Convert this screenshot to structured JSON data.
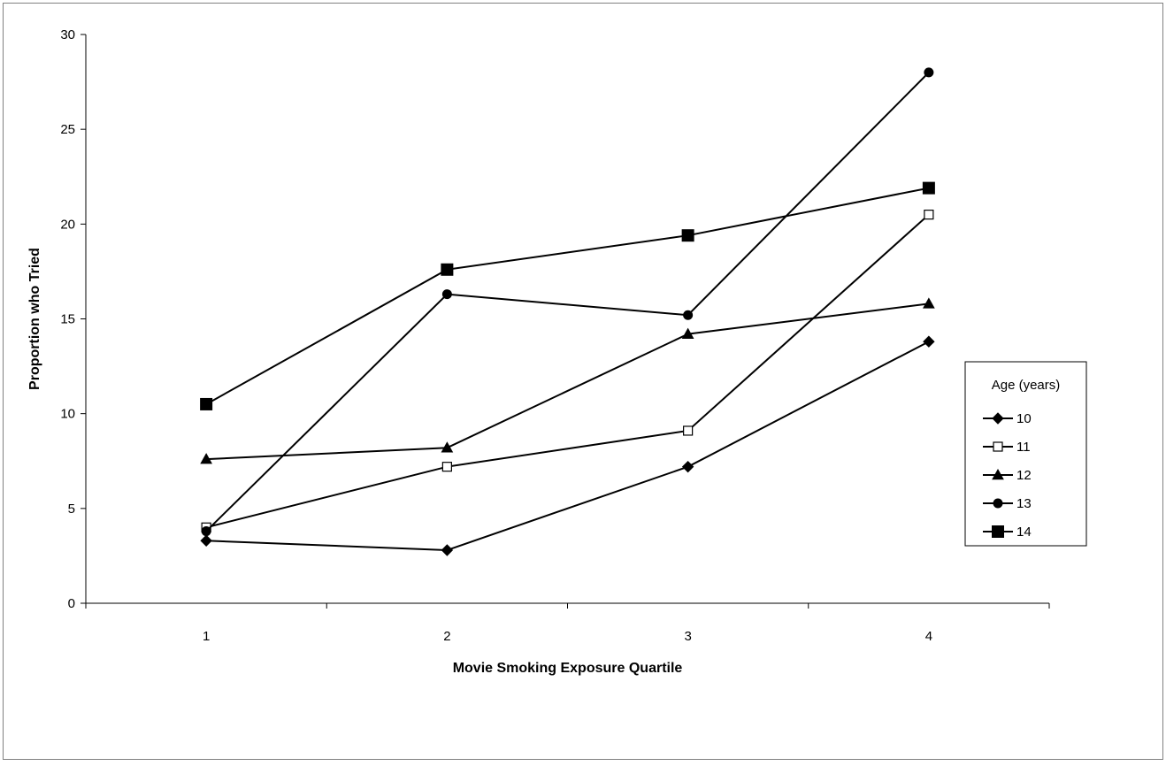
{
  "chart_data": {
    "type": "line",
    "title": "",
    "xlabel": "Movie Smoking Exposure Quartile",
    "ylabel": "Proportion who Tried",
    "categories": [
      "1",
      "2",
      "3",
      "4"
    ],
    "ylim": [
      0,
      30
    ],
    "yticks": [
      0,
      5,
      10,
      15,
      20,
      25,
      30
    ],
    "grid": false,
    "legend": {
      "title": "Age (years)",
      "position": "right"
    },
    "series": [
      {
        "name": "10",
        "marker": "diamond",
        "values": [
          3.3,
          2.8,
          7.2,
          13.8
        ]
      },
      {
        "name": "11",
        "marker": "open-square",
        "values": [
          4.0,
          7.2,
          9.1,
          20.5
        ]
      },
      {
        "name": "12",
        "marker": "triangle",
        "values": [
          7.6,
          8.2,
          14.2,
          15.8
        ]
      },
      {
        "name": "13",
        "marker": "circle",
        "values": [
          3.8,
          16.3,
          15.2,
          28.0
        ]
      },
      {
        "name": "14",
        "marker": "square",
        "values": [
          10.5,
          17.6,
          19.4,
          21.9
        ]
      }
    ]
  }
}
